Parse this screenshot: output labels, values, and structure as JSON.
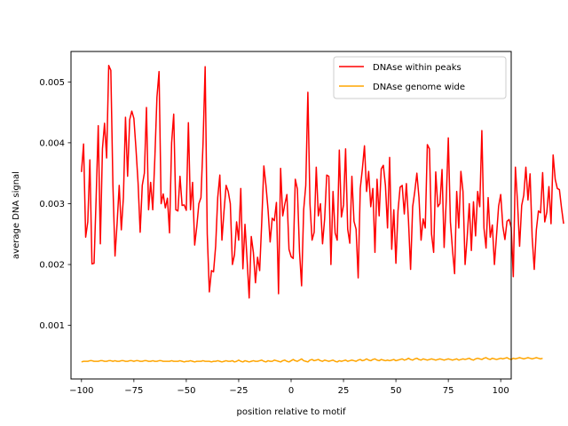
{
  "chart_data": {
    "type": "line",
    "xlabel": "position relative to motif",
    "ylabel": "average DNA signal",
    "xlim": [
      -105,
      105
    ],
    "ylim": [
      0.00012,
      0.0055
    ],
    "xticks": [
      -100,
      -75,
      -50,
      -25,
      0,
      25,
      50,
      75,
      100
    ],
    "xtick_labels": [
      "−100",
      "−75",
      "−50",
      "−25",
      "0",
      "25",
      "50",
      "75",
      "100"
    ],
    "yticks": [
      0.001,
      0.002,
      0.003,
      0.004,
      0.005
    ],
    "ytick_labels": [
      "0.001",
      "0.002",
      "0.003",
      "0.004",
      "0.005"
    ],
    "grid": false,
    "legend_position": "top-right",
    "x_start": -100,
    "x_step": 1,
    "series": [
      {
        "name": "DNAse within peaks",
        "color": "#ff0000",
        "values": [
          0.00352,
          0.00398,
          0.00245,
          0.0027,
          0.00372,
          0.00201,
          0.00202,
          0.0031,
          0.00428,
          0.00234,
          0.0039,
          0.00432,
          0.00375,
          0.00527,
          0.00519,
          0.0033,
          0.00214,
          0.00268,
          0.0033,
          0.00257,
          0.0031,
          0.00442,
          0.00345,
          0.00438,
          0.00452,
          0.0044,
          0.0039,
          0.00334,
          0.00253,
          0.0033,
          0.0035,
          0.00458,
          0.0029,
          0.00335,
          0.0029,
          0.00375,
          0.00475,
          0.00517,
          0.003,
          0.00316,
          0.00293,
          0.00309,
          0.00252,
          0.004,
          0.00447,
          0.0029,
          0.00288,
          0.00345,
          0.00297,
          0.00298,
          0.00289,
          0.00433,
          0.0029,
          0.00335,
          0.00232,
          0.00262,
          0.003,
          0.0031,
          0.004,
          0.00525,
          0.0025,
          0.00155,
          0.0019,
          0.00188,
          0.0023,
          0.0031,
          0.00347,
          0.0024,
          0.00288,
          0.0033,
          0.0032,
          0.003,
          0.002,
          0.00216,
          0.0027,
          0.0024,
          0.00325,
          0.00193,
          0.00266,
          0.00208,
          0.00145,
          0.00246,
          0.0022,
          0.0017,
          0.00212,
          0.0019,
          0.0027,
          0.00362,
          0.0033,
          0.0029,
          0.00237,
          0.00276,
          0.00272,
          0.00302,
          0.00152,
          0.00358,
          0.0028,
          0.00299,
          0.00315,
          0.00225,
          0.00213,
          0.0021,
          0.0034,
          0.00324,
          0.00222,
          0.00165,
          0.0029,
          0.0033,
          0.00483,
          0.003,
          0.0024,
          0.00253,
          0.0036,
          0.0028,
          0.003,
          0.00234,
          0.00275,
          0.00347,
          0.00345,
          0.002,
          0.0032,
          0.00252,
          0.0024,
          0.00388,
          0.00278,
          0.00298,
          0.0039,
          0.00258,
          0.00235,
          0.00345,
          0.00271,
          0.00258,
          0.00178,
          0.00325,
          0.00357,
          0.00395,
          0.0032,
          0.00353,
          0.00295,
          0.00325,
          0.0022,
          0.0034,
          0.0028,
          0.00357,
          0.00363,
          0.0033,
          0.0026,
          0.00376,
          0.00225,
          0.0029,
          0.00202,
          0.00288,
          0.00327,
          0.0033,
          0.00283,
          0.00333,
          0.00272,
          0.00192,
          0.00295,
          0.0032,
          0.0035,
          0.0031,
          0.0024,
          0.00275,
          0.0026,
          0.00397,
          0.0039,
          0.0025,
          0.0022,
          0.00352,
          0.00295,
          0.003,
          0.00356,
          0.00228,
          0.00305,
          0.00408,
          0.0027,
          0.00224,
          0.00185,
          0.0032,
          0.0026,
          0.00353,
          0.0032,
          0.002,
          0.00245,
          0.003,
          0.00223,
          0.00303,
          0.00247,
          0.0032,
          0.00295,
          0.0042,
          0.0026,
          0.00227,
          0.0031,
          0.00245,
          0.00265,
          0.002,
          0.00248,
          0.00296,
          0.00315,
          0.00263,
          0.00241,
          0.00271,
          0.00274,
          0.00261,
          0.0018,
          0.0036,
          0.00303,
          0.0023,
          0.00297,
          0.00314,
          0.0036,
          0.00306,
          0.00349,
          0.00245,
          0.00192,
          0.00257,
          0.00288,
          0.00285,
          0.00351,
          0.0027,
          0.00286,
          0.00328,
          0.00267,
          0.0038,
          0.0034,
          0.00325,
          0.00323,
          0.00293,
          0.00267
        ]
      },
      {
        "name": "DNAse genome wide",
        "color": "#ffa500",
        "values": [
          0.0004,
          0.00041,
          0.00041,
          0.00041,
          0.00042,
          0.00042,
          0.00041,
          0.00041,
          0.00041,
          0.00042,
          0.00042,
          0.00041,
          0.00041,
          0.00042,
          0.00042,
          0.00041,
          0.00042,
          0.00041,
          0.00041,
          0.00042,
          0.00042,
          0.00041,
          0.00041,
          0.00042,
          0.00042,
          0.00041,
          0.00042,
          0.00042,
          0.00041,
          0.00041,
          0.00042,
          0.00042,
          0.00041,
          0.00041,
          0.00042,
          0.00041,
          0.00041,
          0.00042,
          0.00042,
          0.00041,
          0.00041,
          0.00041,
          0.00041,
          0.00042,
          0.00041,
          0.00041,
          0.00041,
          0.00042,
          0.00041,
          0.0004,
          0.00041,
          0.00041,
          0.00042,
          0.00041,
          0.0004,
          0.00041,
          0.00041,
          0.00041,
          0.00042,
          0.00041,
          0.00041,
          0.00041,
          0.0004,
          0.00041,
          0.00041,
          0.00042,
          0.00041,
          0.0004,
          0.00041,
          0.00042,
          0.00041,
          0.00041,
          0.00042,
          0.0004,
          0.00041,
          0.00043,
          0.00041,
          0.0004,
          0.00042,
          0.00041,
          0.0004,
          0.00041,
          0.00042,
          0.00041,
          0.00041,
          0.00042,
          0.00043,
          0.00041,
          0.0004,
          0.00042,
          0.00041,
          0.00041,
          0.00043,
          0.00042,
          0.00041,
          0.0004,
          0.00042,
          0.00043,
          0.00041,
          0.0004,
          0.00042,
          0.00044,
          0.00042,
          0.00041,
          0.00043,
          0.00045,
          0.00042,
          0.00041,
          0.0004,
          0.00043,
          0.00044,
          0.00042,
          0.00043,
          0.00044,
          0.00042,
          0.00041,
          0.00043,
          0.00042,
          0.00041,
          0.00042,
          0.00043,
          0.00041,
          0.0004,
          0.00042,
          0.00041,
          0.00042,
          0.00043,
          0.00041,
          0.00042,
          0.00043,
          0.00042,
          0.00041,
          0.00043,
          0.00044,
          0.00042,
          0.00043,
          0.00045,
          0.00043,
          0.00042,
          0.00044,
          0.00045,
          0.00043,
          0.00042,
          0.00044,
          0.00043,
          0.00042,
          0.00043,
          0.00042,
          0.00043,
          0.00044,
          0.00042,
          0.00043,
          0.00044,
          0.00045,
          0.00043,
          0.00044,
          0.00046,
          0.00044,
          0.00043,
          0.00045,
          0.00046,
          0.00044,
          0.00043,
          0.00045,
          0.00044,
          0.00043,
          0.00044,
          0.00045,
          0.00044,
          0.00043,
          0.00044,
          0.00045,
          0.00044,
          0.00043,
          0.00044,
          0.00045,
          0.00044,
          0.00043,
          0.00044,
          0.00045,
          0.00043,
          0.00044,
          0.00045,
          0.00044,
          0.00045,
          0.00046,
          0.00044,
          0.00043,
          0.00045,
          0.00046,
          0.00045,
          0.00044,
          0.00046,
          0.00047,
          0.00045,
          0.00044,
          0.00046,
          0.00045,
          0.00044,
          0.00045,
          0.00046,
          0.00045,
          0.00046,
          0.00047,
          0.00045,
          0.00044,
          0.00046,
          0.00045,
          0.00046,
          0.00047,
          0.00046,
          0.00045,
          0.00046,
          0.00047,
          0.00046,
          0.00045,
          0.00046,
          0.00047,
          0.00046,
          0.00045,
          0.00046
        ]
      }
    ]
  }
}
